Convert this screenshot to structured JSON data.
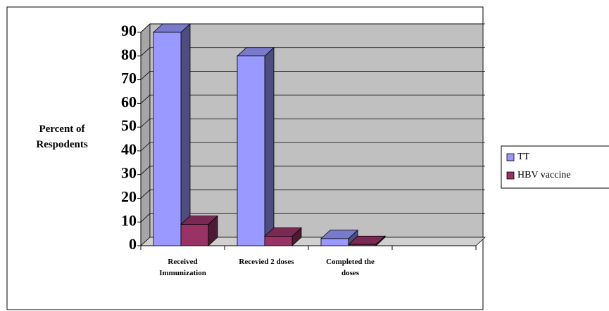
{
  "chart_data": {
    "type": "bar3d",
    "ylabel": "Percent of Respodents",
    "categories": [
      "Received Immunization",
      "Recevied 2 doses",
      "Completed the doses",
      null
    ],
    "series": [
      {
        "name": "TT",
        "color": "#9999ff",
        "values": [
          90,
          80,
          3,
          null
        ]
      },
      {
        "name": "HBV vaccine",
        "color": "#993366",
        "values": [
          9,
          4,
          0.5,
          null
        ]
      }
    ],
    "ylim": [
      0,
      90
    ],
    "yticks": [
      0,
      10,
      20,
      30,
      40,
      50,
      60,
      70,
      80,
      90
    ],
    "grid": true,
    "legend": "right"
  }
}
